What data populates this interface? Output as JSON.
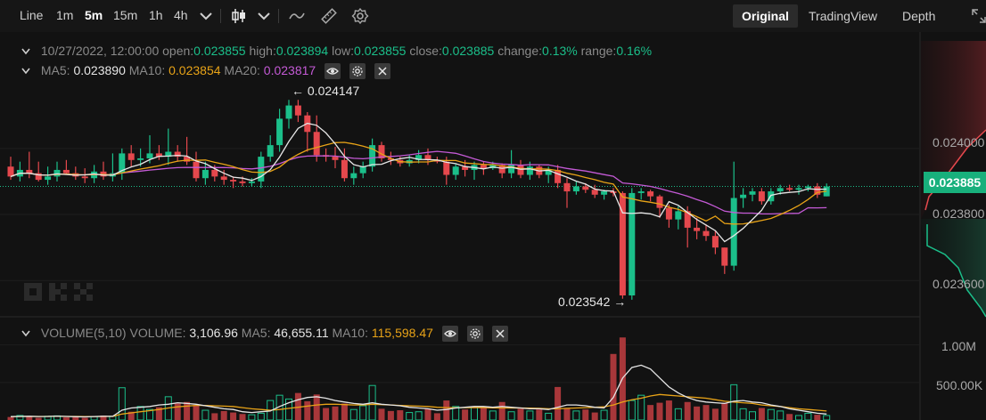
{
  "toolbar": {
    "intervals": [
      {
        "label": "Line",
        "active": false
      },
      {
        "label": "1m",
        "active": false
      },
      {
        "label": "5m",
        "active": true
      },
      {
        "label": "15m",
        "active": false
      },
      {
        "label": "1h",
        "active": false
      },
      {
        "label": "4h",
        "active": false
      }
    ],
    "views": [
      {
        "label": "Original",
        "active": true
      },
      {
        "label": "TradingView",
        "active": false
      },
      {
        "label": "Depth",
        "active": false
      }
    ]
  },
  "ohlc": {
    "date": "10/27/2022, 12:00:00",
    "open_label": "open:",
    "open": "0.023855",
    "high_label": "high:",
    "high": "0.023894",
    "low_label": "low:",
    "low": "0.023855",
    "close_label": "close:",
    "close": "0.023885",
    "change_label": "change:",
    "change": "0.13%",
    "range_label": "range:",
    "range": "0.16%"
  },
  "ma": {
    "ma5_label": "MA5:",
    "ma5": "0.023890",
    "ma10_label": "MA10:",
    "ma10": "0.023854",
    "ma20_label": "MA20:",
    "ma20": "0.023817"
  },
  "volume": {
    "title": "VOLUME(5,10)",
    "vol_label": "VOLUME:",
    "vol": "3,106.96",
    "ma5_label": "MA5:",
    "ma5": "46,655.11",
    "ma10_label": "MA10:",
    "ma10": "115,598.47"
  },
  "annotations": {
    "high": "0.024147",
    "low": "0.023542"
  },
  "price_axis": {
    "labels": [
      "0.024000",
      "0.023800",
      "0.023600"
    ],
    "current": "0.023885"
  },
  "volume_axis": {
    "labels": [
      "1.00M",
      "500.00K"
    ]
  },
  "colors": {
    "up": "#1bbf8a",
    "down": "#e5484d",
    "ma5": "#e6e6e6",
    "ma10": "#e8a317",
    "ma20": "#c45ad6"
  },
  "chart_data": {
    "type": "candlestick",
    "price_range": [
      0.02352,
      0.02418
    ],
    "current_price": 0.023885,
    "candles": [
      {
        "o": 0.023945,
        "h": 0.023975,
        "l": 0.023905,
        "c": 0.023915
      },
      {
        "o": 0.023915,
        "h": 0.02396,
        "l": 0.0239,
        "c": 0.023935
      },
      {
        "o": 0.023935,
        "h": 0.02399,
        "l": 0.02391,
        "c": 0.023925
      },
      {
        "o": 0.023925,
        "h": 0.02396,
        "l": 0.0239,
        "c": 0.023905
      },
      {
        "o": 0.023905,
        "h": 0.023945,
        "l": 0.02389,
        "c": 0.023915
      },
      {
        "o": 0.023915,
        "h": 0.02396,
        "l": 0.0239,
        "c": 0.023935
      },
      {
        "o": 0.023935,
        "h": 0.023965,
        "l": 0.02392,
        "c": 0.023925
      },
      {
        "o": 0.023925,
        "h": 0.023945,
        "l": 0.023905,
        "c": 0.023915
      },
      {
        "o": 0.023915,
        "h": 0.02394,
        "l": 0.023895,
        "c": 0.02391
      },
      {
        "o": 0.02391,
        "h": 0.02395,
        "l": 0.023895,
        "c": 0.02393
      },
      {
        "o": 0.02393,
        "h": 0.02396,
        "l": 0.023905,
        "c": 0.023915
      },
      {
        "o": 0.023915,
        "h": 0.023985,
        "l": 0.0239,
        "c": 0.023925
      },
      {
        "o": 0.023925,
        "h": 0.024,
        "l": 0.023905,
        "c": 0.023985
      },
      {
        "o": 0.023985,
        "h": 0.02401,
        "l": 0.023945,
        "c": 0.023965
      },
      {
        "o": 0.023965,
        "h": 0.024,
        "l": 0.023945,
        "c": 0.02397
      },
      {
        "o": 0.02397,
        "h": 0.02404,
        "l": 0.023955,
        "c": 0.023985
      },
      {
        "o": 0.023985,
        "h": 0.02401,
        "l": 0.023965,
        "c": 0.023975
      },
      {
        "o": 0.023975,
        "h": 0.02406,
        "l": 0.02395,
        "c": 0.02399
      },
      {
        "o": 0.02399,
        "h": 0.02401,
        "l": 0.02396,
        "c": 0.023975
      },
      {
        "o": 0.023975,
        "h": 0.024035,
        "l": 0.02395,
        "c": 0.02396
      },
      {
        "o": 0.02396,
        "h": 0.02399,
        "l": 0.0239,
        "c": 0.02391
      },
      {
        "o": 0.02391,
        "h": 0.02396,
        "l": 0.02389,
        "c": 0.023935
      },
      {
        "o": 0.023935,
        "h": 0.02395,
        "l": 0.0239,
        "c": 0.023915
      },
      {
        "o": 0.023915,
        "h": 0.023935,
        "l": 0.02389,
        "c": 0.023905
      },
      {
        "o": 0.023905,
        "h": 0.023915,
        "l": 0.02388,
        "c": 0.0239
      },
      {
        "o": 0.0239,
        "h": 0.023915,
        "l": 0.023885,
        "c": 0.023895
      },
      {
        "o": 0.023895,
        "h": 0.02391,
        "l": 0.023885,
        "c": 0.0239
      },
      {
        "o": 0.0239,
        "h": 0.02399,
        "l": 0.02388,
        "c": 0.023975
      },
      {
        "o": 0.023975,
        "h": 0.02404,
        "l": 0.02396,
        "c": 0.02401
      },
      {
        "o": 0.02401,
        "h": 0.02412,
        "l": 0.02399,
        "c": 0.02409
      },
      {
        "o": 0.02409,
        "h": 0.024147,
        "l": 0.02406,
        "c": 0.02413
      },
      {
        "o": 0.02413,
        "h": 0.024147,
        "l": 0.02408,
        "c": 0.0241
      },
      {
        "o": 0.0241,
        "h": 0.02411,
        "l": 0.02399,
        "c": 0.02405
      },
      {
        "o": 0.02405,
        "h": 0.0241,
        "l": 0.02396,
        "c": 0.02398
      },
      {
        "o": 0.02398,
        "h": 0.024,
        "l": 0.02396,
        "c": 0.023975
      },
      {
        "o": 0.023975,
        "h": 0.024005,
        "l": 0.02394,
        "c": 0.023965
      },
      {
        "o": 0.023965,
        "h": 0.024,
        "l": 0.0239,
        "c": 0.02391
      },
      {
        "o": 0.02391,
        "h": 0.023945,
        "l": 0.02389,
        "c": 0.023925
      },
      {
        "o": 0.023925,
        "h": 0.02396,
        "l": 0.02391,
        "c": 0.023945
      },
      {
        "o": 0.023945,
        "h": 0.02403,
        "l": 0.02393,
        "c": 0.02401
      },
      {
        "o": 0.02401,
        "h": 0.02402,
        "l": 0.02396,
        "c": 0.02397
      },
      {
        "o": 0.02397,
        "h": 0.02399,
        "l": 0.02395,
        "c": 0.023965
      },
      {
        "o": 0.023965,
        "h": 0.023975,
        "l": 0.023945,
        "c": 0.023955
      },
      {
        "o": 0.023955,
        "h": 0.02398,
        "l": 0.023945,
        "c": 0.023965
      },
      {
        "o": 0.023965,
        "h": 0.023995,
        "l": 0.023955,
        "c": 0.02398
      },
      {
        "o": 0.02398,
        "h": 0.024,
        "l": 0.02395,
        "c": 0.023965
      },
      {
        "o": 0.023965,
        "h": 0.023975,
        "l": 0.023955,
        "c": 0.02396
      },
      {
        "o": 0.02396,
        "h": 0.023975,
        "l": 0.02389,
        "c": 0.02392
      },
      {
        "o": 0.02392,
        "h": 0.023955,
        "l": 0.023905,
        "c": 0.023945
      },
      {
        "o": 0.023945,
        "h": 0.023965,
        "l": 0.023915,
        "c": 0.023935
      },
      {
        "o": 0.023935,
        "h": 0.02396,
        "l": 0.023905,
        "c": 0.02395
      },
      {
        "o": 0.02395,
        "h": 0.02396,
        "l": 0.02392,
        "c": 0.02394
      },
      {
        "o": 0.02394,
        "h": 0.02396,
        "l": 0.023935,
        "c": 0.02395
      },
      {
        "o": 0.02395,
        "h": 0.023955,
        "l": 0.02391,
        "c": 0.023925
      },
      {
        "o": 0.023925,
        "h": 0.023995,
        "l": 0.02391,
        "c": 0.02395
      },
      {
        "o": 0.02395,
        "h": 0.023965,
        "l": 0.02391,
        "c": 0.02392
      },
      {
        "o": 0.02392,
        "h": 0.02396,
        "l": 0.023905,
        "c": 0.023945
      },
      {
        "o": 0.023945,
        "h": 0.02395,
        "l": 0.02391,
        "c": 0.02392
      },
      {
        "o": 0.02392,
        "h": 0.023945,
        "l": 0.023895,
        "c": 0.023935
      },
      {
        "o": 0.023935,
        "h": 0.02395,
        "l": 0.02388,
        "c": 0.023895
      },
      {
        "o": 0.023895,
        "h": 0.02391,
        "l": 0.02382,
        "c": 0.02387
      },
      {
        "o": 0.02387,
        "h": 0.0239,
        "l": 0.02386,
        "c": 0.023885
      },
      {
        "o": 0.023885,
        "h": 0.023895,
        "l": 0.023865,
        "c": 0.023875
      },
      {
        "o": 0.023875,
        "h": 0.02389,
        "l": 0.02385,
        "c": 0.02386
      },
      {
        "o": 0.02386,
        "h": 0.023875,
        "l": 0.023845,
        "c": 0.02387
      },
      {
        "o": 0.02387,
        "h": 0.02388,
        "l": 0.023855,
        "c": 0.023865
      },
      {
        "o": 0.023865,
        "h": 0.02387,
        "l": 0.023545,
        "c": 0.023555
      },
      {
        "o": 0.023555,
        "h": 0.02388,
        "l": 0.023542,
        "c": 0.023865
      },
      {
        "o": 0.023865,
        "h": 0.02388,
        "l": 0.023845,
        "c": 0.02387
      },
      {
        "o": 0.02387,
        "h": 0.023875,
        "l": 0.02384,
        "c": 0.023855
      },
      {
        "o": 0.023855,
        "h": 0.02386,
        "l": 0.02379,
        "c": 0.02382
      },
      {
        "o": 0.02382,
        "h": 0.02383,
        "l": 0.02376,
        "c": 0.023785
      },
      {
        "o": 0.023785,
        "h": 0.023825,
        "l": 0.023755,
        "c": 0.02381
      },
      {
        "o": 0.02381,
        "h": 0.023825,
        "l": 0.0237,
        "c": 0.02376
      },
      {
        "o": 0.02376,
        "h": 0.02379,
        "l": 0.023725,
        "c": 0.02375
      },
      {
        "o": 0.02375,
        "h": 0.02377,
        "l": 0.02372,
        "c": 0.023735
      },
      {
        "o": 0.023735,
        "h": 0.02375,
        "l": 0.02368,
        "c": 0.0237
      },
      {
        "o": 0.0237,
        "h": 0.0237,
        "l": 0.02362,
        "c": 0.023645
      },
      {
        "o": 0.023645,
        "h": 0.02396,
        "l": 0.02363,
        "c": 0.02385
      },
      {
        "o": 0.02385,
        "h": 0.02388,
        "l": 0.02382,
        "c": 0.02386
      },
      {
        "o": 0.02386,
        "h": 0.02388,
        "l": 0.02384,
        "c": 0.02387
      },
      {
        "o": 0.02387,
        "h": 0.02388,
        "l": 0.02383,
        "c": 0.02384
      },
      {
        "o": 0.02384,
        "h": 0.02388,
        "l": 0.02383,
        "c": 0.02387
      },
      {
        "o": 0.02387,
        "h": 0.02389,
        "l": 0.02386,
        "c": 0.02388
      },
      {
        "o": 0.02388,
        "h": 0.02389,
        "l": 0.02387,
        "c": 0.023875
      },
      {
        "o": 0.023875,
        "h": 0.02389,
        "l": 0.02386,
        "c": 0.02388
      },
      {
        "o": 0.02388,
        "h": 0.02389,
        "l": 0.02387,
        "c": 0.023885
      },
      {
        "o": 0.023885,
        "h": 0.023895,
        "l": 0.02385,
        "c": 0.02386
      },
      {
        "o": 0.023855,
        "h": 0.023894,
        "l": 0.023855,
        "c": 0.023885
      }
    ],
    "volume_range": [
      0,
      1200000
    ],
    "volumes": [
      40,
      60,
      45,
      30,
      50,
      55,
      35,
      40,
      30,
      45,
      60,
      50,
      430,
      110,
      180,
      140,
      170,
      310,
      220,
      240,
      200,
      130,
      90,
      120,
      100,
      80,
      70,
      90,
      260,
      330,
      280,
      360,
      250,
      340,
      160,
      180,
      220,
      140,
      190,
      460,
      150,
      120,
      130,
      100,
      110,
      150,
      90,
      260,
      180,
      140,
      170,
      160,
      120,
      240,
      110,
      150,
      120,
      140,
      90,
      440,
      160,
      120,
      140,
      100,
      130,
      880,
      1100,
      260,
      330,
      200,
      230,
      260,
      150,
      240,
      180,
      200,
      150,
      230,
      470,
      150,
      110,
      160,
      140,
      120,
      80,
      60,
      90,
      70,
      60
    ],
    "volume_ma5": [
      45,
      48,
      50,
      46,
      48,
      52,
      47,
      44,
      42,
      46,
      50,
      49,
      130,
      160,
      170,
      180,
      200,
      210,
      230,
      220,
      210,
      190,
      170,
      150,
      140,
      110,
      100,
      110,
      120,
      180,
      230,
      270,
      300,
      310,
      290,
      260,
      240,
      220,
      210,
      230,
      210,
      200,
      190,
      170,
      160,
      150,
      130,
      140,
      160,
      170,
      180,
      180,
      170,
      180,
      170,
      160,
      150,
      150,
      140,
      170,
      200,
      200,
      190,
      170,
      160,
      300,
      560,
      700,
      730,
      680,
      560,
      440,
      360,
      300,
      260,
      240,
      230,
      220,
      250,
      260,
      240,
      230,
      200,
      180,
      150,
      130,
      110,
      90,
      80
    ],
    "volume_ma10": [
      45,
      47,
      48,
      47,
      47,
      49,
      48,
      47,
      46,
      46,
      47,
      48,
      80,
      95,
      110,
      125,
      140,
      160,
      175,
      185,
      195,
      195,
      190,
      185,
      180,
      165,
      150,
      140,
      130,
      140,
      155,
      170,
      185,
      200,
      210,
      210,
      205,
      200,
      200,
      210,
      205,
      200,
      195,
      190,
      185,
      180,
      170,
      165,
      165,
      165,
      165,
      165,
      162,
      160,
      160,
      160,
      158,
      155,
      150,
      150,
      155,
      160,
      165,
      170,
      175,
      200,
      240,
      270,
      290,
      320,
      340,
      330,
      320,
      310,
      300,
      290,
      270,
      250,
      240,
      230,
      220,
      200,
      190,
      180,
      165,
      150,
      140,
      130,
      120
    ]
  }
}
